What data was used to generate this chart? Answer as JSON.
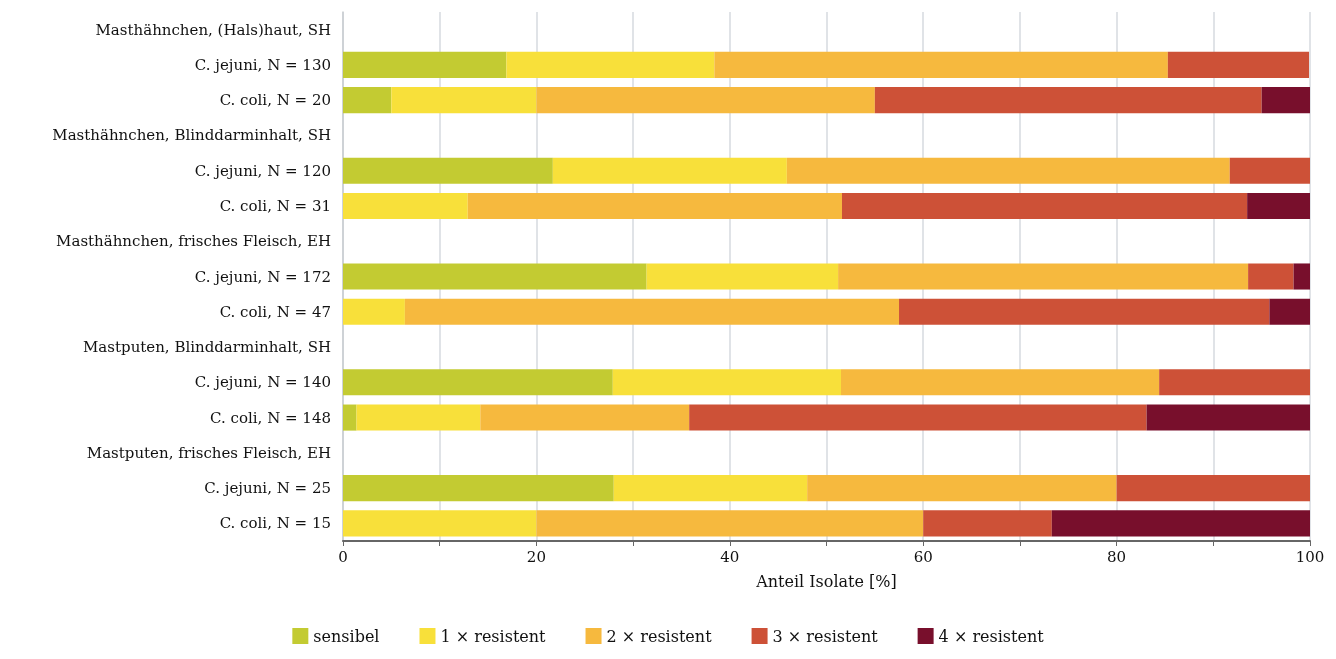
{
  "chart_data": {
    "type": "bar",
    "orientation": "horizontal",
    "stacked": true,
    "xlabel": "Anteil Isolate [%]",
    "categories": [
      "Masthähnchen, (Hals)haut, SH",
      "C. jejuni, N = 130",
      "C. coli, N = 20",
      "Masthähnchen, Blinddarminhalt, SH",
      "C. jejuni, N = 120",
      "C. coli, N = 31",
      "Masthähnchen, frisches Fleisch, EH",
      "C. jejuni, N = 172",
      "C. coli, N = 47",
      "Mastputen, Blinddarminhalt, SH",
      "C. jejuni, N = 140",
      "C. coli, N = 148",
      "Mastputen, frisches Fleisch, EH",
      "C. jejuni, N = 25",
      "C. coli, N = 15"
    ],
    "series": [
      {
        "name": "sensibel",
        "color": "#c3cb32",
        "values": [
          null,
          16.9,
          5,
          null,
          21.7,
          0,
          null,
          31.4,
          0,
          null,
          27.9,
          1.4,
          null,
          28,
          0
        ]
      },
      {
        "name": "1 × resistent",
        "color": "#f8e03a",
        "values": [
          null,
          21.5,
          15,
          null,
          24.2,
          12.9,
          null,
          19.8,
          6.4,
          null,
          23.6,
          12.8,
          null,
          20,
          20
        ]
      },
      {
        "name": "2 × resistent",
        "color": "#f6b93e",
        "values": [
          null,
          46.9,
          35,
          null,
          45.8,
          38.7,
          null,
          42.4,
          51.1,
          null,
          32.9,
          21.6,
          null,
          32,
          40
        ]
      },
      {
        "name": "3 × resistent",
        "color": "#cd5137",
        "values": [
          null,
          14.6,
          40,
          null,
          8.3,
          41.9,
          null,
          4.7,
          38.3,
          null,
          15.7,
          47.3,
          null,
          20,
          13.3
        ]
      },
      {
        "name": "4 × resistent",
        "color": "#780f2c",
        "values": [
          null,
          0,
          5,
          null,
          0,
          6.5,
          null,
          1.7,
          4.3,
          null,
          0,
          16.9,
          null,
          0,
          26.7
        ]
      }
    ],
    "xlim": [
      0,
      100
    ],
    "xticks": [
      0,
      {
        "value": 10,
        "label": null
      },
      20,
      {
        "value": 30,
        "label": null
      },
      40,
      {
        "value": 50,
        "label": null
      },
      60,
      {
        "value": 70,
        "label": null
      },
      80,
      {
        "value": 90,
        "label": null
      },
      100
    ],
    "grid": "x",
    "legend": "bottom"
  }
}
